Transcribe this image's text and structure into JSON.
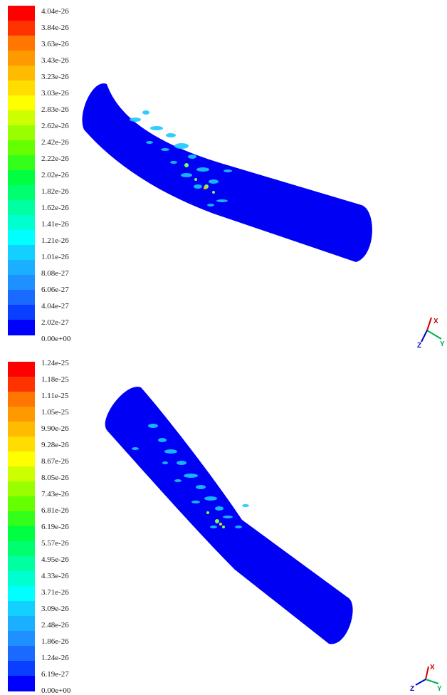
{
  "colors": {
    "scale": [
      "#0000ff",
      "#0a3fff",
      "#1a6aff",
      "#1e90ff",
      "#1ab0ff",
      "#12d0ff",
      "#00ffff",
      "#00ffd0",
      "#00ffa0",
      "#00ff70",
      "#00ff40",
      "#33ff1a",
      "#66ff00",
      "#99ff00",
      "#ccff00",
      "#ffff00",
      "#ffdd00",
      "#ffbb00",
      "#ff9900",
      "#ff7700",
      "#ff3300",
      "#ff0000"
    ],
    "tube": "#0000f5",
    "triad_x": "#d40000",
    "triad_y": "#00b050",
    "triad_z": "#0000c8"
  },
  "top": {
    "labels": [
      "4.04e-26",
      "3.84e-26",
      "3.63e-26",
      "3.43e-26",
      "3.23e-26",
      "3.03e-26",
      "2.83e-26",
      "2.62e-26",
      "2.42e-26",
      "2.22e-26",
      "2.02e-26",
      "1.82e-26",
      "1.62e-26",
      "1.41e-26",
      "1.21e-26",
      "1.01e-26",
      "8.08e-27",
      "6.06e-27",
      "4.04e-27",
      "2.02e-27",
      "0.00e+00"
    ],
    "triad": {
      "x": "X",
      "y": "Y",
      "z": "Z"
    }
  },
  "bottom": {
    "labels": [
      "1.24e-25",
      "1.18e-25",
      "1.11e-25",
      "1.05e-25",
      "9.90e-26",
      "9.28e-26",
      "8.67e-26",
      "8.05e-26",
      "7.43e-26",
      "6.81e-26",
      "6.19e-26",
      "5.57e-26",
      "4.95e-26",
      "4.33e-26",
      "3.71e-26",
      "3.09e-26",
      "2.48e-26",
      "1.86e-26",
      "1.24e-26",
      "6.19e-27",
      "0.00e+00"
    ],
    "triad": {
      "x": "X",
      "y": "Y",
      "z": "Z"
    }
  }
}
